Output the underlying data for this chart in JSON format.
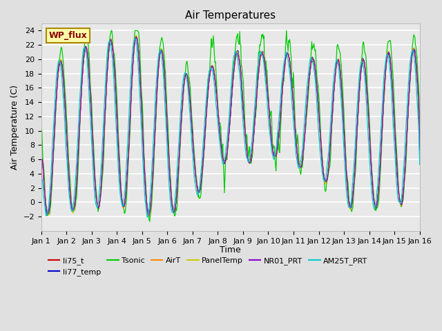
{
  "title": "Air Temperatures",
  "xlabel": "Time",
  "ylabel": "Air Temperature (C)",
  "ylim": [
    -4,
    25
  ],
  "yticks": [
    -2,
    0,
    2,
    4,
    6,
    8,
    10,
    12,
    14,
    16,
    18,
    20,
    22,
    24
  ],
  "xlim": [
    0,
    15
  ],
  "xtick_labels": [
    "Jan 1",
    "Jan 2",
    "Jan 3",
    "Jan 4",
    "Jan 5",
    "Jan 6",
    "Jan 7",
    "Jan 8",
    "Jan 9",
    "Jan 10",
    "Jan 11",
    "Jan 12",
    "Jan 13",
    "Jan 14",
    "Jan 15",
    "Jan 16"
  ],
  "background_color": "#e0e0e0",
  "axes_facecolor": "#e8e8e8",
  "grid_color": "white",
  "series": [
    {
      "label": "li75_t",
      "color": "#cc0000"
    },
    {
      "label": "li77_temp",
      "color": "#0000cc"
    },
    {
      "label": "Tsonic",
      "color": "#00cc00"
    },
    {
      "label": "AirT",
      "color": "#ff8800"
    },
    {
      "label": "PanelTemp",
      "color": "#cccc00"
    },
    {
      "label": "NR01_PRT",
      "color": "#8800cc"
    },
    {
      "label": "AM25T_PRT",
      "color": "#00cccc"
    }
  ],
  "legend_box": {
    "label": "WP_flux",
    "facecolor": "#ffffaa",
    "edgecolor": "#aa8800",
    "textcolor": "#880000",
    "fontsize": 9
  },
  "title_fontsize": 11,
  "label_fontsize": 9,
  "tick_fontsize": 8
}
